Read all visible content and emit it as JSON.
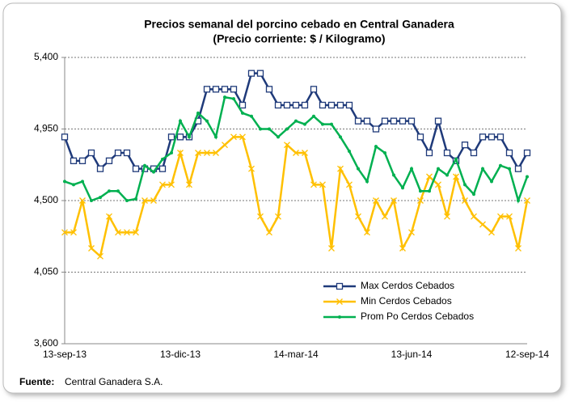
{
  "chart_data": {
    "type": "line",
    "title": "Precios semanal del porcino cebado en Central Ganadera",
    "subtitle": "(Precio corriente: $ / Kilogramo)",
    "source_label": "Fuente:",
    "source": "Central Ganadera S.A.",
    "categories": [
      "13-sep-13",
      null,
      null,
      null,
      null,
      null,
      null,
      null,
      null,
      null,
      null,
      null,
      null,
      "13-dic-13",
      null,
      null,
      null,
      null,
      null,
      null,
      null,
      null,
      null,
      null,
      null,
      null,
      "14-mar-14",
      null,
      null,
      null,
      null,
      null,
      null,
      null,
      null,
      null,
      null,
      null,
      null,
      "13-jun-14",
      null,
      null,
      null,
      null,
      null,
      null,
      null,
      null,
      null,
      null,
      null,
      null,
      "12-sep-14"
    ],
    "series": [
      {
        "name": "Max Cerdos Cebados",
        "color": "#1f3a7a",
        "marker": "square",
        "values": [
          4900,
          4750,
          4750,
          4800,
          4700,
          4750,
          4800,
          4800,
          4700,
          4700,
          4700,
          4700,
          4900,
          4900,
          4900,
          5000,
          5200,
          5200,
          5200,
          5200,
          5100,
          5300,
          5300,
          5200,
          5100,
          5100,
          5100,
          5100,
          5200,
          5100,
          5100,
          5100,
          5100,
          5000,
          5000,
          4950,
          5000,
          5000,
          5000,
          5000,
          4900,
          4800,
          5000,
          4800,
          4750,
          4850,
          4800,
          4900,
          4900,
          4900,
          4800,
          4700,
          4800
        ]
      },
      {
        "name": "Min Cerdos Cebados",
        "color": "#ffc000",
        "marker": "x",
        "values": [
          4300,
          4300,
          4500,
          4200,
          4150,
          4400,
          4300,
          4300,
          4300,
          4500,
          4500,
          4600,
          4600,
          4800,
          4600,
          4800,
          4800,
          4800,
          4850,
          4900,
          4900,
          4700,
          4400,
          4300,
          4400,
          4850,
          4800,
          4800,
          4600,
          4600,
          4200,
          4700,
          4600,
          4400,
          4300,
          4500,
          4400,
          4500,
          4200,
          4300,
          4500,
          4650,
          4600,
          4400,
          4650,
          4500,
          4400,
          4350,
          4300,
          4400,
          4400,
          4200,
          4500
        ]
      },
      {
        "name": "Prom Po Cerdos Cebados",
        "color": "#00b050",
        "marker": "dot",
        "values": [
          4620,
          4600,
          4620,
          4500,
          4520,
          4560,
          4560,
          4500,
          4510,
          4720,
          4680,
          4760,
          4800,
          5000,
          4900,
          5050,
          5000,
          4900,
          5150,
          5140,
          5050,
          5030,
          4950,
          4950,
          4900,
          4950,
          5000,
          4980,
          5030,
          4980,
          4980,
          4900,
          4810,
          4700,
          4620,
          4840,
          4800,
          4660,
          4580,
          4700,
          4560,
          4560,
          4700,
          4660,
          4760,
          4600,
          4540,
          4700,
          4620,
          4720,
          4700,
          4500,
          4650
        ]
      }
    ],
    "ylim": [
      3600,
      5400
    ],
    "yticks": [
      {
        "value": 3600,
        "label": "3,600"
      },
      {
        "value": 4050,
        "label": "4,050"
      },
      {
        "value": 4500,
        "label": "4,500"
      },
      {
        "value": 4950,
        "label": "4,950"
      },
      {
        "value": 5400,
        "label": "5,400"
      }
    ],
    "grid": true,
    "legend": "lower-right"
  }
}
